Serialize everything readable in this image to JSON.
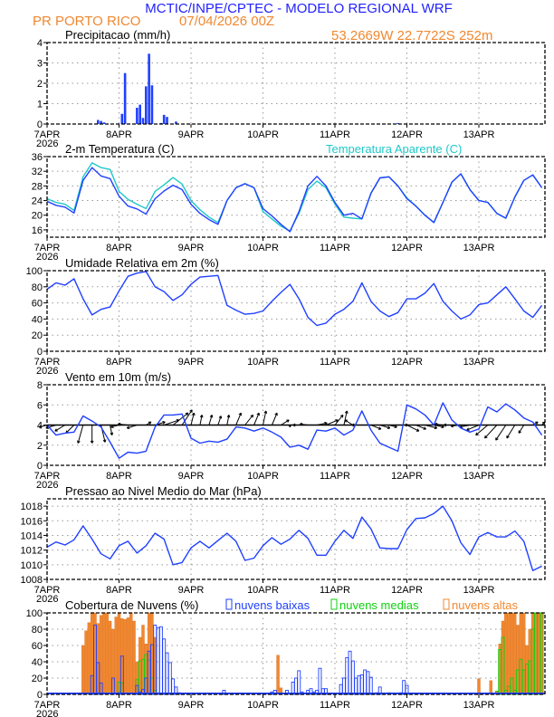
{
  "header": {
    "title": "MCTIC/INPE/CPTEC - MODELO REGIONAL WRF",
    "location": "PR PORTO RICO",
    "run": "07/04/2026 00Z",
    "coords": "53.2669W 22.7722S 252m",
    "title_color": "#2222ff",
    "subtitle_color": "#f08830"
  },
  "x_axis": {
    "ticks": [
      "7APR",
      "8APR",
      "9APR",
      "10APR",
      "11APR",
      "12APR",
      "13APR"
    ],
    "year": "2026"
  },
  "chart_data": [
    {
      "id": "precip",
      "type": "bar",
      "title": "Precipitacao (mm/h)",
      "ylim": [
        0,
        4
      ],
      "yticks": [
        0,
        1,
        2,
        3,
        4
      ],
      "grid": true,
      "color": "#2040ff",
      "bars": [
        {
          "t": "07APR07Z",
          "v": 0.02
        },
        {
          "t": "07APR17Z",
          "v": 0.2
        },
        {
          "t": "07APR18Z",
          "v": 0.15
        },
        {
          "t": "07APR19Z",
          "v": 0.08
        },
        {
          "t": "08APR01Z",
          "v": 0.5
        },
        {
          "t": "08APR02Z",
          "v": 2.5
        },
        {
          "t": "08APR06Z",
          "v": 0.8
        },
        {
          "t": "08APR07Z",
          "v": 0.95
        },
        {
          "t": "08APR08Z",
          "v": 0.3
        },
        {
          "t": "08APR09Z",
          "v": 1.85
        },
        {
          "t": "08APR10Z",
          "v": 3.45
        },
        {
          "t": "08APR11Z",
          "v": 1.9
        },
        {
          "t": "08APR14Z",
          "v": 0.05
        },
        {
          "t": "08APR15Z",
          "v": 0.45
        },
        {
          "t": "08APR16Z",
          "v": 0.35
        },
        {
          "t": "08APR19Z",
          "v": 0.12
        },
        {
          "t": "11APR21Z",
          "v": 0.05
        },
        {
          "t": "13APR21Z",
          "v": 0.03
        }
      ]
    },
    {
      "id": "temp",
      "type": "line",
      "title": "2-m Temperatura (C)",
      "ylim": [
        14,
        36
      ],
      "yticks": [
        16,
        20,
        24,
        28,
        32,
        36
      ],
      "grid": true,
      "time_step_hours": 3,
      "series": [
        {
          "name": "Temperatura Aparente (C)",
          "color": "#20c8c8",
          "values": [
            24.5,
            23.5,
            23,
            21.3,
            30.5,
            34.3,
            33,
            32.5,
            26.5,
            24.3,
            23,
            21.8,
            26.5,
            28.3,
            30.3,
            28.5,
            24,
            21.5,
            19.5,
            18,
            24,
            27.5,
            28.6,
            27.5,
            21,
            19,
            17,
            15.7,
            20.5,
            27,
            29.3,
            27.5,
            23,
            19.5,
            19.2,
            19,
            26,
            30.2,
            30.5,
            28,
            24.7,
            22.5,
            20,
            18,
            23.5,
            29,
            31.3,
            27,
            24,
            23.5,
            20.5,
            19.2,
            25,
            29.5,
            31,
            27.5
          ]
        },
        {
          "color": "#2040ff",
          "values": [
            23.8,
            22.7,
            22.2,
            20.6,
            29.5,
            33,
            30.7,
            30,
            25.2,
            22.5,
            21.7,
            20.3,
            24.5,
            26.6,
            28.2,
            27,
            23,
            20.5,
            18.8,
            17.5,
            24,
            27.5,
            28.6,
            27.5,
            21.8,
            19.8,
            17.5,
            15.5,
            21,
            28,
            30.6,
            28,
            23.5,
            20,
            20.5,
            19,
            26,
            30.2,
            30.5,
            28,
            24.5,
            22.5,
            20,
            18,
            23.5,
            29,
            31.3,
            27,
            24,
            23.5,
            20.5,
            19.2,
            25,
            29.5,
            31,
            27.5
          ]
        }
      ]
    },
    {
      "id": "rh",
      "type": "line",
      "title": "Umidade Relativa em 2m (%)",
      "ylim": [
        0,
        100
      ],
      "yticks": [
        0,
        20,
        40,
        60,
        80,
        100
      ],
      "grid": true,
      "time_step_hours": 3,
      "series": [
        {
          "color": "#2040ff",
          "values": [
            77,
            85,
            82,
            90,
            65,
            45,
            52,
            55,
            75,
            93,
            97,
            99,
            80,
            74,
            63,
            70,
            83,
            92,
            93,
            94,
            57,
            51,
            46,
            47,
            50,
            62,
            73,
            83,
            65,
            42,
            32,
            35,
            46,
            52,
            62,
            85,
            62,
            50,
            43,
            48,
            65,
            65,
            72,
            84,
            62,
            50,
            40,
            45,
            58,
            60,
            70,
            80,
            65,
            50,
            42,
            57
          ]
        }
      ]
    },
    {
      "id": "wind",
      "type": "line",
      "title": "Vento em 10m (m/s)",
      "ylim": [
        0,
        8
      ],
      "yticks": [
        0,
        2,
        4,
        6,
        8
      ],
      "grid": true,
      "time_step_hours": 3,
      "series": [
        {
          "color": "#2040ff",
          "values": [
            4,
            3,
            3.2,
            3.3,
            4.9,
            4.4,
            3.8,
            2.3,
            0.7,
            1.3,
            1.2,
            1.4,
            3.8,
            5,
            5,
            5.1,
            2.7,
            2.2,
            2.4,
            2.3,
            2.6,
            3.8,
            3.7,
            3.4,
            3.7,
            3.3,
            2.8,
            1.8,
            2,
            1.6,
            3.5,
            3.4,
            3.7,
            3,
            3.5,
            5.4,
            3.5,
            2.2,
            1.8,
            1.4,
            6,
            5.6,
            5,
            4,
            6.2,
            4.5,
            3.7,
            3.3,
            3.6,
            5.8,
            5.3,
            6.1,
            5.5,
            4.7,
            4.3,
            3.0
          ]
        }
      ],
      "vectors": {
        "color": "#000000",
        "baseline": 4,
        "uv": [
          [
            -0.8,
            -0.2
          ],
          [
            -1,
            -0.3
          ],
          [
            -1,
            -0.6
          ],
          [
            -0.8,
            -0.8
          ],
          [
            -0.5,
            -1.8
          ],
          [
            0,
            -1.8
          ],
          [
            0.4,
            -1.7
          ],
          [
            0.2,
            -1
          ],
          [
            -0.8,
            -0.2
          ],
          [
            -1,
            0.1
          ],
          [
            -1,
            -0.3
          ],
          [
            0.5,
            0.3
          ],
          [
            1,
            0.3
          ],
          [
            1.5,
            0.5
          ],
          [
            1.5,
            1.2
          ],
          [
            1,
            1.5
          ],
          [
            0.3,
            1.2
          ],
          [
            0.2,
            1
          ],
          [
            0.3,
            1
          ],
          [
            0.3,
            0.9
          ],
          [
            0.2,
            1
          ],
          [
            0.5,
            1.2
          ],
          [
            0.8,
            1
          ],
          [
            0.5,
            1.2
          ],
          [
            0.3,
            1.4
          ],
          [
            0.5,
            1.2
          ],
          [
            0.8,
            0.5
          ],
          [
            0,
            -0.2
          ],
          [
            -0.6,
            0
          ],
          [
            -0.8,
            0.1
          ],
          [
            1,
            0.2
          ],
          [
            1.2,
            0.5
          ],
          [
            0.8,
            1
          ],
          [
            0.3,
            1.4
          ],
          [
            -0.8,
            0.5
          ],
          [
            -1,
            0
          ],
          [
            1,
            -0.4
          ],
          [
            1,
            -0.3
          ],
          [
            0.8,
            -0.2
          ],
          [
            1,
            0
          ],
          [
            1.2,
            -0.6
          ],
          [
            1,
            -0.4
          ],
          [
            1.2,
            -0.3
          ],
          [
            1,
            -0.2
          ],
          [
            -0.8,
            0.1
          ],
          [
            -0.8,
            0
          ],
          [
            -1,
            -0.1
          ],
          [
            -1,
            -0.2
          ],
          [
            -1.2,
            -0.5
          ],
          [
            -1.2,
            -1
          ],
          [
            -1.2,
            -1.3
          ],
          [
            -1,
            -1.5
          ],
          [
            -0.8,
            -1.3
          ],
          [
            -0.5,
            -0.8
          ],
          [
            0.5,
            0.3
          ],
          [
            0.3,
            0.3
          ]
        ]
      }
    },
    {
      "id": "pressure",
      "type": "line",
      "title": "Pressao ao Nivel Medio do Mar (hPa)",
      "ylim": [
        1008,
        1019
      ],
      "yticks": [
        1008,
        1010,
        1012,
        1014,
        1016,
        1018
      ],
      "grid": true,
      "time_step_hours": 3,
      "series": [
        {
          "color": "#2040ff",
          "values": [
            1012.4,
            1013.1,
            1012.7,
            1013.4,
            1015.3,
            1013.5,
            1011.5,
            1010.8,
            1012.6,
            1013.2,
            1011.6,
            1012.6,
            1014.3,
            1013.5,
            1010,
            1010.3,
            1012.3,
            1013.2,
            1012.3,
            1013.3,
            1014.3,
            1013.2,
            1010.6,
            1010.9,
            1012.6,
            1013.7,
            1012.8,
            1013.5,
            1014.7,
            1013.6,
            1011.3,
            1011.3,
            1013.2,
            1014.7,
            1013.6,
            1016.5,
            1014.9,
            1012.3,
            1012.2,
            1012.2,
            1014.8,
            1016.3,
            1016.4,
            1017,
            1018,
            1016,
            1013,
            1011.4,
            1013.8,
            1014.4,
            1013.8,
            1013.8,
            1014.6,
            1013.2,
            1009.2,
            1009.8
          ]
        }
      ]
    },
    {
      "id": "clouds",
      "type": "bar",
      "title": "Cobertura de Nuvens (%)",
      "ylim": [
        0,
        100
      ],
      "yticks": [
        0,
        20,
        40,
        60,
        80,
        100
      ],
      "grid": true,
      "legend_position": "top",
      "series": [
        {
          "name": "nuvens altas",
          "color": "#f08830",
          "filled": true,
          "bars": {
            "07APR12Z": 60,
            "07APR13Z": 78,
            "07APR14Z": 88,
            "07APR15Z": 100,
            "07APR16Z": 100,
            "07APR17Z": 87,
            "07APR18Z": 97,
            "07APR19Z": 100,
            "07APR20Z": 100,
            "07APR21Z": 90,
            "07APR22Z": 80,
            "07APR23Z": 95,
            "08APR00Z": 100,
            "08APR01Z": 93,
            "08APR02Z": 92,
            "08APR03Z": 94,
            "08APR04Z": 100,
            "08APR05Z": 90,
            "08APR06Z": 40,
            "08APR07Z": 70,
            "08APR08Z": 85,
            "08APR09Z": 62,
            "08APR10Z": 100,
            "08APR11Z": 100,
            "08APR12Z": 70,
            "10APR05Z": 48,
            "10APR06Z": 8,
            "13APR00Z": 19,
            "13APR01Z": 2,
            "13APR04Z": 17,
            "13APR05Z": 2,
            "13APR06Z": 4,
            "13APR07Z": 62,
            "13APR08Z": 90,
            "13APR09Z": 100,
            "13APR10Z": 100,
            "13APR11Z": 100,
            "13APR12Z": 100,
            "13APR13Z": 85,
            "13APR14Z": 100,
            "13APR15Z": 100,
            "13APR16Z": 60,
            "13APR17Z": 80,
            "13APR18Z": 100,
            "13APR19Z": 100,
            "13APR20Z": 100,
            "13APR21Z": 100
          }
        },
        {
          "name": "nuvens medias",
          "color": "#10d010",
          "filled": false,
          "bars": {
            "08APR00Z": 15,
            "08APR01Z": 14,
            "08APR06Z": 18,
            "08APR07Z": 41,
            "08APR08Z": 43,
            "08APR09Z": 49,
            "08APR10Z": 42,
            "08APR11Z": 20,
            "08APR12Z": 5,
            "11APR18Z": 2,
            "13APR06Z": 4,
            "13APR07Z": 55,
            "13APR08Z": 70,
            "13APR09Z": 5,
            "13APR10Z": 10,
            "13APR11Z": 20,
            "13APR12Z": 5,
            "13APR13Z": 30,
            "13APR14Z": 43,
            "13APR15Z": 30,
            "13APR16Z": 37,
            "13APR17Z": 41,
            "13APR18Z": 80,
            "13APR19Z": 100,
            "13APR20Z": 100,
            "13APR21Z": 100
          }
        },
        {
          "name": "nuvens baixas",
          "color": "#2040ff",
          "filled": false,
          "bars": {
            "07APR15Z": 23,
            "07APR16Z": 85,
            "07APR17Z": 39,
            "07APR18Z": 14,
            "07APR22Z": 20,
            "08APR00Z": 2,
            "08APR01Z": 47,
            "08APR06Z": 11,
            "08APR07Z": 3,
            "08APR08Z": 6,
            "08APR09Z": 20,
            "08APR10Z": 53,
            "08APR11Z": 61,
            "08APR12Z": 85,
            "08APR13Z": 82,
            "08APR14Z": 83,
            "08APR15Z": 68,
            "08APR16Z": 51,
            "08APR17Z": 39,
            "08APR18Z": 19,
            "08APR19Z": 9,
            "08APR20Z": 2,
            "09APR11Z": 5,
            "10APR03Z": 3,
            "10APR04Z": 5,
            "10APR08Z": 5,
            "10APR10Z": 15,
            "10APR11Z": 20,
            "10APR12Z": 29,
            "10APR13Z": 3,
            "10APR15Z": 5,
            "10APR16Z": 7,
            "10APR17Z": 3,
            "10APR18Z": 5,
            "10APR19Z": 32,
            "10APR20Z": 7,
            "10APR21Z": 7,
            "11APR02Z": 12,
            "11APR03Z": 20,
            "11APR04Z": 45,
            "11APR05Z": 53,
            "11APR06Z": 41,
            "11APR07Z": 20,
            "11APR08Z": 23,
            "11APR09Z": 24,
            "11APR10Z": 30,
            "11APR11Z": 28,
            "11APR12Z": 21,
            "11APR14Z": 2,
            "11APR15Z": 9,
            "11APR22Z": 2,
            "11APR23Z": 17,
            "12APR00Z": 11
          }
        }
      ]
    }
  ]
}
